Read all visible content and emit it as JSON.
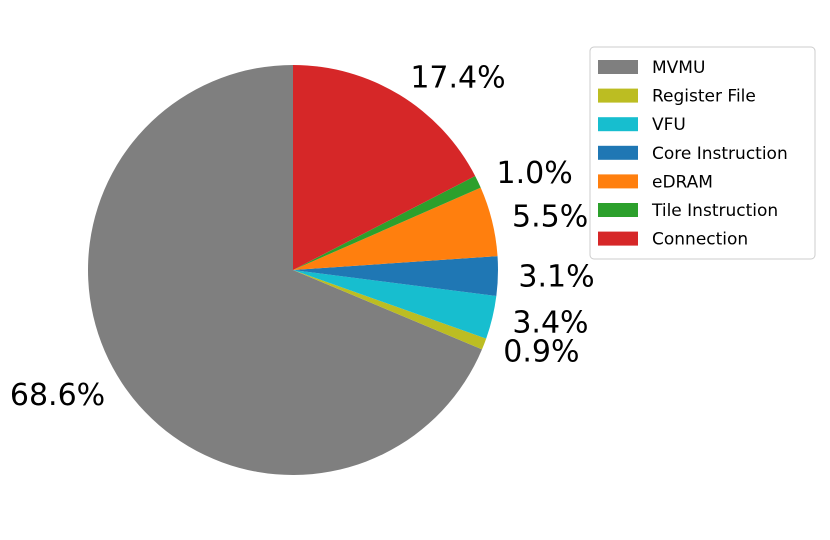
{
  "chart_data": {
    "type": "pie",
    "title": "",
    "start_angle_deg": 90,
    "direction": "counterclockwise",
    "slices": [
      {
        "name": "MVMU",
        "value": 68.6,
        "label": "68.6%",
        "color": "#7f7f7f"
      },
      {
        "name": "Register File",
        "value": 0.9,
        "label": "0.9%",
        "color": "#bcbd22"
      },
      {
        "name": "VFU",
        "value": 3.4,
        "label": "3.4%",
        "color": "#17becf"
      },
      {
        "name": "Core Instruction",
        "value": 3.1,
        "label": "3.1%",
        "color": "#1f77b4"
      },
      {
        "name": "eDRAM",
        "value": 5.5,
        "label": "5.5%",
        "color": "#ff7f0e"
      },
      {
        "name": "Tile Instruction",
        "value": 1.0,
        "label": "1.0%",
        "color": "#2ca02c"
      },
      {
        "name": "Connection",
        "value": 17.4,
        "label": "17.4%",
        "color": "#d62728"
      }
    ],
    "legend_placement": "upper-right"
  }
}
